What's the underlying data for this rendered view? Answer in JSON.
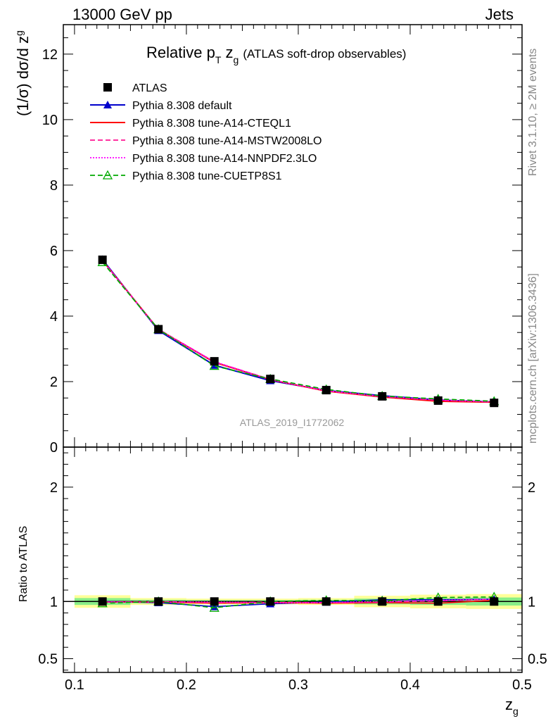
{
  "header": {
    "left": "13000 GeV pp",
    "right": "Jets"
  },
  "title": {
    "main_prefix": "Relative p",
    "main_sub_T": "T",
    "main_z": " z",
    "main_sub_g": "g",
    "extra": "(ATLAS soft-drop observables)"
  },
  "ylabel_top": {
    "prefix": "(1/σ) dσ/d z",
    "sub": "g"
  },
  "ylabel_bottom": "Ratio to ATLAS",
  "xlabel": {
    "main": "z",
    "sub": "g"
  },
  "watermark": "ATLAS_2019_I1772062",
  "side_text": {
    "rivet": "Rivet 3.1.10, ≥ 2M events",
    "mcplots": "mcplots.cern.ch [arXiv:1306.3436]"
  },
  "chart_data": [
    {
      "type": "line",
      "panel": "main",
      "x": [
        0.125,
        0.175,
        0.225,
        0.275,
        0.325,
        0.375,
        0.425,
        0.475
      ],
      "xlim": [
        0.09,
        0.5
      ],
      "ylim": [
        0,
        12.9
      ],
      "xticks": [
        "0.1",
        "0.2",
        "0.3",
        "0.4",
        "0.5"
      ],
      "yticks": [
        "0",
        "2",
        "4",
        "6",
        "8",
        "10",
        "12"
      ],
      "legend_position": "top-left",
      "series": [
        {
          "name": "ATLAS",
          "color": "#000000",
          "marker": "square",
          "values": [
            5.72,
            3.6,
            2.62,
            2.08,
            1.74,
            1.55,
            1.42,
            1.35
          ]
        },
        {
          "name": "Pythia 8.308 default",
          "color": "#0000cc",
          "marker": "triangle",
          "style": "solid",
          "values": [
            5.73,
            3.56,
            2.5,
            2.03,
            1.73,
            1.57,
            1.44,
            1.38
          ]
        },
        {
          "name": "Pythia 8.308 tune-A14-CTEQL1",
          "color": "#ff0000",
          "marker": "none",
          "style": "solid",
          "values": [
            5.7,
            3.59,
            2.59,
            2.06,
            1.71,
            1.53,
            1.4,
            1.37
          ]
        },
        {
          "name": "Pythia 8.308 tune-A14-MSTW2008LO",
          "color": "#ff1493",
          "marker": "none",
          "style": "dashed",
          "values": [
            5.69,
            3.6,
            2.6,
            2.07,
            1.72,
            1.54,
            1.43,
            1.38
          ]
        },
        {
          "name": "Pythia 8.308 tune-A14-NNPDF2.3LO",
          "color": "#ff00ff",
          "marker": "none",
          "style": "dotted",
          "values": [
            5.7,
            3.58,
            2.61,
            2.06,
            1.72,
            1.55,
            1.44,
            1.38
          ]
        },
        {
          "name": "Pythia 8.308 tune-CUETP8S1",
          "color": "#00aa00",
          "marker": "open-triangle",
          "style": "dashed",
          "values": [
            5.65,
            3.6,
            2.48,
            2.08,
            1.76,
            1.56,
            1.47,
            1.4
          ]
        }
      ]
    },
    {
      "type": "line",
      "panel": "ratio",
      "x": [
        0.125,
        0.175,
        0.225,
        0.275,
        0.325,
        0.375,
        0.425,
        0.475
      ],
      "xlim": [
        0.09,
        0.5
      ],
      "ylim": [
        0.38,
        2.35
      ],
      "yticks": [
        "0.5",
        "1",
        "2"
      ],
      "bands": {
        "x_edges": [
          0.1,
          0.15,
          0.2,
          0.25,
          0.3,
          0.35,
          0.4,
          0.45,
          0.5
        ],
        "yellow_halfwidth": [
          0.055,
          0.03,
          0.025,
          0.025,
          0.03,
          0.05,
          0.06,
          0.065
        ],
        "green_halfwidth": [
          0.03,
          0.015,
          0.012,
          0.012,
          0.015,
          0.025,
          0.03,
          0.035
        ]
      },
      "series": [
        {
          "name": "Pythia 8.308 default",
          "color": "#0000cc",
          "values": [
            1.0,
            0.99,
            0.955,
            0.98,
            0.995,
            1.015,
            1.015,
            1.02
          ]
        },
        {
          "name": "Pythia 8.308 tune-A14-CTEQL1",
          "color": "#ff0000",
          "values": [
            0.995,
            0.995,
            0.985,
            0.99,
            0.985,
            0.99,
            0.985,
            1.01
          ]
        },
        {
          "name": "Pythia 8.308 tune-A14-MSTW2008LO",
          "color": "#ff1493",
          "values": [
            0.995,
            1.0,
            0.99,
            0.995,
            0.99,
            0.995,
            1.005,
            1.02
          ]
        },
        {
          "name": "Pythia 8.308 tune-A14-NNPDF2.3LO",
          "color": "#ff00ff",
          "values": [
            0.995,
            0.995,
            0.995,
            0.99,
            0.99,
            1.0,
            1.01,
            1.02
          ]
        },
        {
          "name": "Pythia 8.308 tune-CUETP8S1",
          "color": "#00aa00",
          "values": [
            0.985,
            1.0,
            0.945,
            1.0,
            1.01,
            1.005,
            1.035,
            1.04
          ]
        }
      ]
    }
  ]
}
